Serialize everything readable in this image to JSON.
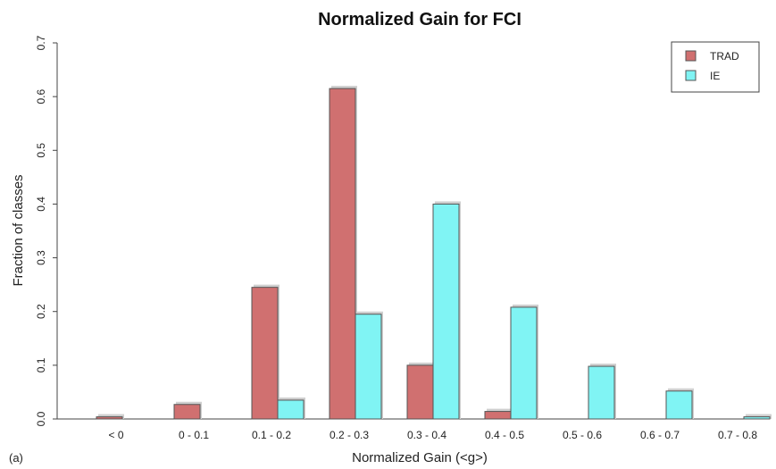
{
  "chart_data": {
    "type": "bar",
    "title": "Normalized Gain for FCI",
    "xlabel": "Normalized Gain (<g>)",
    "ylabel": "Fraction of classes",
    "panel_label": "(a)",
    "categories": [
      "< 0",
      "0 - 0.1",
      "0.1 - 0.2",
      "0.2 - 0.3",
      "0.3 - 0.4",
      "0.4 - 0.5",
      "0.5 - 0.6",
      "0.6 - 0.7",
      "0.7 - 0.8"
    ],
    "series": [
      {
        "name": "TRAD",
        "color": "#d07070",
        "values": [
          0.004,
          0.027,
          0.245,
          0.615,
          0.1,
          0.014,
          0.0,
          0.0,
          0.0
        ]
      },
      {
        "name": "IE",
        "color": "#80f4f4",
        "values": [
          0.0,
          0.0,
          0.035,
          0.195,
          0.4,
          0.208,
          0.098,
          0.052,
          0.004
        ]
      }
    ],
    "ylim": [
      0.0,
      0.7
    ],
    "yticks": [
      "0.0",
      "0.1",
      "0.2",
      "0.3",
      "0.4",
      "0.5",
      "0.6",
      "0.7"
    ],
    "legend_position": "top-right",
    "grid": false
  }
}
